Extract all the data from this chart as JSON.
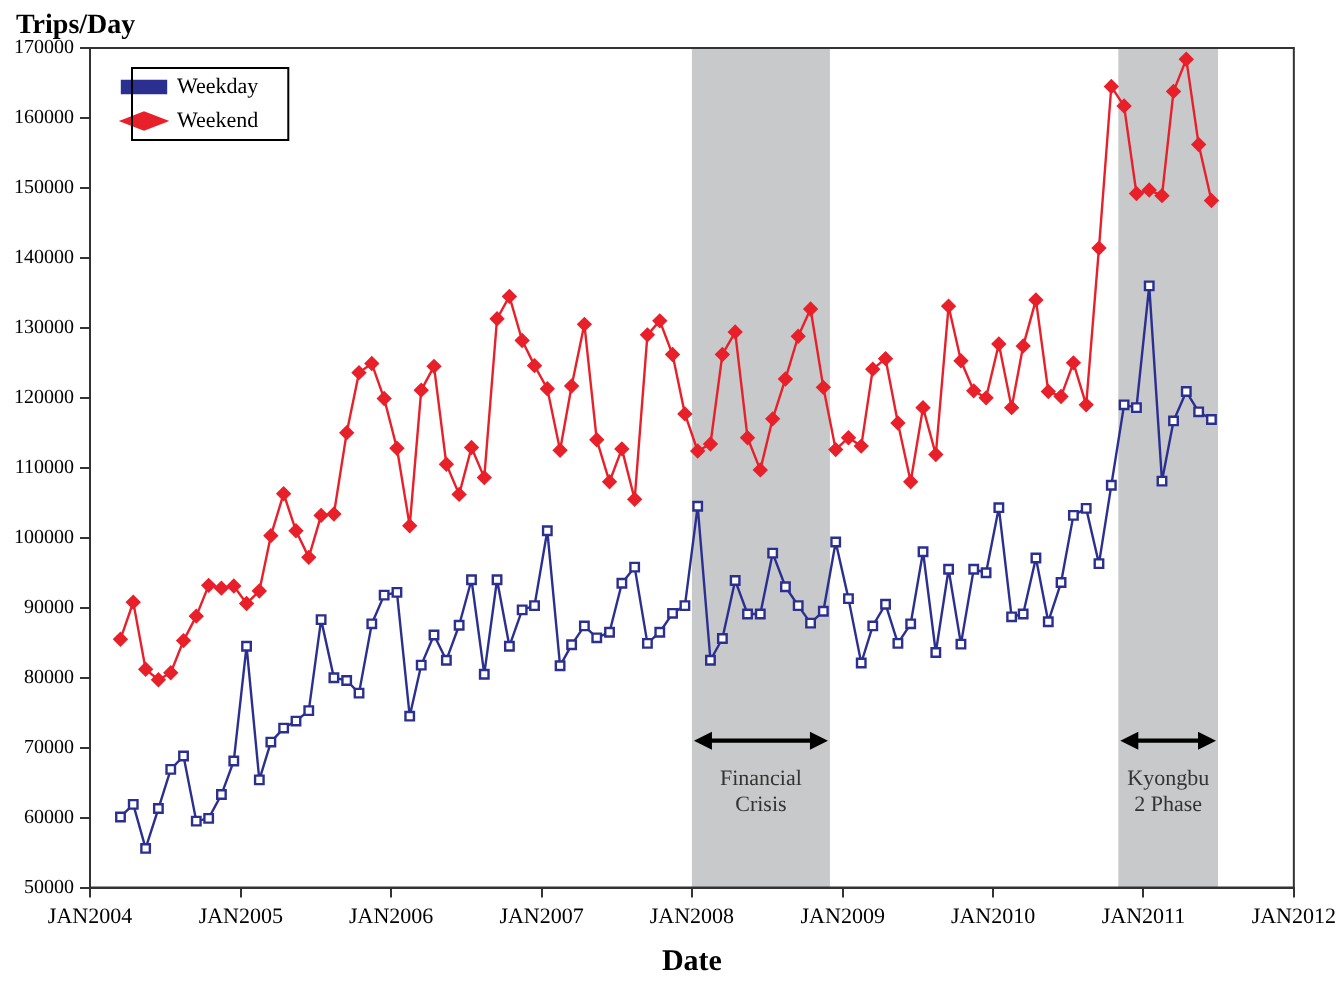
{
  "chart_data": {
    "type": "line",
    "ylabel": "Trips/Day",
    "xlabel": "Date",
    "legend": "top left",
    "grid": false,
    "line_style": "solid",
    "xlim": [
      "2004-01",
      "2012-01"
    ],
    "xticks": [
      {
        "value": "2004-01",
        "label": "JAN2004"
      },
      {
        "value": "2005-01",
        "label": "JAN2005"
      },
      {
        "value": "2006-01",
        "label": "JAN2006"
      },
      {
        "value": "2007-01",
        "label": "JAN2007"
      },
      {
        "value": "2008-01",
        "label": "JAN2008"
      },
      {
        "value": "2009-01",
        "label": "JAN2009"
      },
      {
        "value": "2010-01",
        "label": "JAN2010"
      },
      {
        "value": "2011-01",
        "label": "JAN2011"
      },
      {
        "value": "2012-01",
        "label": "JAN2012"
      }
    ],
    "ylim": [
      50000,
      170000
    ],
    "yticks": [
      50000,
      60000,
      70000,
      80000,
      90000,
      100000,
      110000,
      120000,
      130000,
      140000,
      150000,
      160000,
      170000
    ],
    "x": [
      "2004-03-15",
      "2004-04-15",
      "2004-05-15",
      "2004-06-15",
      "2004-07-15",
      "2004-08-15",
      "2004-09-15",
      "2004-10-15",
      "2004-11-15",
      "2004-12-15",
      "2005-01-15",
      "2005-02-15",
      "2005-03-15",
      "2005-04-15",
      "2005-05-15",
      "2005-06-15",
      "2005-07-15",
      "2005-08-15",
      "2005-09-15",
      "2005-10-15",
      "2005-11-15",
      "2005-12-15",
      "2006-01-15",
      "2006-02-15",
      "2006-03-15",
      "2006-04-15",
      "2006-05-15",
      "2006-06-15",
      "2006-07-15",
      "2006-08-15",
      "2006-09-15",
      "2006-10-15",
      "2006-11-15",
      "2006-12-15",
      "2007-01-15",
      "2007-02-15",
      "2007-03-15",
      "2007-04-15",
      "2007-05-15",
      "2007-06-15",
      "2007-07-15",
      "2007-08-15",
      "2007-09-15",
      "2007-10-15",
      "2007-11-15",
      "2007-12-15",
      "2008-01-15",
      "2008-02-15",
      "2008-03-15",
      "2008-04-15",
      "2008-05-15",
      "2008-06-15",
      "2008-07-15",
      "2008-08-15",
      "2008-09-15",
      "2008-10-15",
      "2008-11-15",
      "2008-12-15",
      "2009-01-15",
      "2009-02-15",
      "2009-03-15",
      "2009-04-15",
      "2009-05-15",
      "2009-06-15",
      "2009-07-15",
      "2009-08-15",
      "2009-09-15",
      "2009-10-15",
      "2009-11-15",
      "2009-12-15",
      "2010-01-15",
      "2010-02-15",
      "2010-03-15",
      "2010-04-15",
      "2010-05-15",
      "2010-06-15",
      "2010-07-15",
      "2010-08-15",
      "2010-09-15",
      "2010-10-15",
      "2010-11-15",
      "2010-12-15",
      "2011-01-15",
      "2011-02-15",
      "2011-03-15",
      "2011-04-15",
      "2011-05-15",
      "2011-06-15"
    ],
    "series": [
      {
        "name": "Weekday",
        "color": "#2b2f8f",
        "marker": "square",
        "values": [
          60100,
          61900,
          55600,
          61300,
          66900,
          68800,
          59500,
          59900,
          63300,
          68100,
          84500,
          65400,
          70800,
          72800,
          73800,
          75300,
          88300,
          80000,
          79600,
          77800,
          87700,
          91800,
          92200,
          74500,
          81800,
          86100,
          82500,
          87500,
          94000,
          80500,
          94000,
          84500,
          89700,
          90300,
          101000,
          81700,
          84700,
          87400,
          85700,
          86500,
          93500,
          95800,
          84900,
          86500,
          89200,
          90300,
          104500,
          82500,
          85600,
          93900,
          89100,
          89100,
          97800,
          93000,
          90300,
          87800,
          89500,
          99400,
          91300,
          82100,
          87400,
          90500,
          84900,
          87700,
          98000,
          83600,
          95500,
          84800,
          95500,
          95000,
          104300,
          88700,
          89100,
          97100,
          88000,
          93600,
          103200,
          104200,
          96300,
          107500,
          119000,
          118600,
          136000,
          108100,
          116700,
          120900,
          118000,
          116900
        ]
      },
      {
        "name": "Weekend",
        "color": "#e8202a",
        "marker": "diamond",
        "values": [
          85500,
          90800,
          81200,
          79700,
          80700,
          85300,
          88800,
          93200,
          92800,
          93100,
          90600,
          92400,
          100300,
          106300,
          101000,
          97200,
          103200,
          103400,
          115000,
          123600,
          124900,
          119900,
          112800,
          101700,
          121100,
          124500,
          110500,
          106200,
          112900,
          108600,
          131300,
          134500,
          128200,
          124600,
          121300,
          112500,
          121700,
          130500,
          114000,
          108000,
          112700,
          105500,
          129000,
          131000,
          126200,
          117700,
          112400,
          113400,
          126200,
          129400,
          114300,
          109700,
          117000,
          122700,
          128800,
          132700,
          121500,
          112600,
          114300,
          113100,
          124100,
          125600,
          116400,
          108000,
          118600,
          111900,
          133100,
          125300,
          121000,
          120000,
          127700,
          118600,
          127400,
          134000,
          120900,
          120200,
          125000,
          119000,
          141400,
          164500,
          161700,
          149200,
          149700,
          148900,
          163800,
          168400,
          156200,
          148200
        ]
      }
    ],
    "bands": [
      {
        "axis": "x",
        "from": "2008-01",
        "to": "2008-12",
        "label": "Financial Crisis",
        "color": "#c8c9ca"
      },
      {
        "axis": "x",
        "from": "2010-11",
        "to": "2011-07",
        "label": "Kyongbu 2 Phase",
        "color": "#c8c9ca"
      }
    ]
  }
}
